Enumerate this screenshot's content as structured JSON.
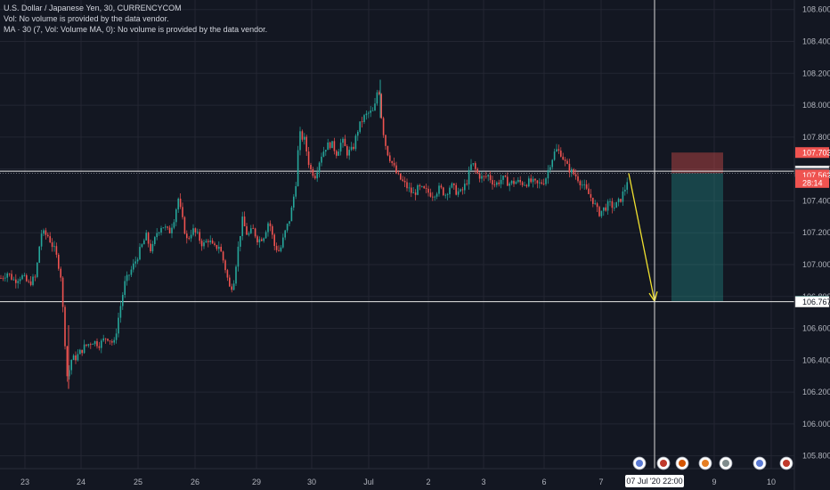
{
  "legend": {
    "title": "U.S. Dollar / Japanese Yen, 30, CURRENCYCOM",
    "vol": "Vol: No volume is provided by the data vendor.",
    "ma": "MA · 30 (7, Vol: Volume MA, 0): No volume is provided by the data vendor."
  },
  "colors": {
    "background": "#131722",
    "grid": "#232632",
    "up": "#26a69a",
    "down": "#ef5350",
    "crosshair": "#d1d4dc",
    "arrow": "#f0e130",
    "stop_zone": "#ef5350",
    "target_zone": "#26a69a"
  },
  "chart_data": {
    "type": "candlestick",
    "symbol": "U.S. Dollar / Japanese Yen, 30, CURRENCYCOM",
    "y_range": [
      105.72,
      108.66
    ],
    "y_ticks": [
      "108.600",
      "108.400",
      "108.200",
      "108.000",
      "107.800",
      "107.600",
      "107.400",
      "107.200",
      "107.000",
      "106.800",
      "106.600",
      "106.400",
      "106.200",
      "106.000",
      "105.800"
    ],
    "x_labels": [
      "23",
      "24",
      "25",
      "26",
      "29",
      "30",
      "Jul",
      "2",
      "3",
      "6",
      "7",
      "9",
      "10"
    ],
    "price_path": [
      [
        0,
        106.91
      ],
      [
        8,
        106.95
      ],
      [
        16,
        106.9
      ],
      [
        24,
        106.93
      ],
      [
        32,
        106.88
      ],
      [
        40,
        106.92
      ],
      [
        46,
        107.2
      ],
      [
        54,
        107.18
      ],
      [
        62,
        107.08
      ],
      [
        68,
        106.95
      ],
      [
        72,
        106.6
      ],
      [
        76,
        106.25
      ],
      [
        79,
        106.4
      ],
      [
        86,
        106.42
      ],
      [
        94,
        106.48
      ],
      [
        104,
        106.52
      ],
      [
        112,
        106.5
      ],
      [
        120,
        106.55
      ],
      [
        128,
        106.5
      ],
      [
        134,
        106.7
      ],
      [
        140,
        106.88
      ],
      [
        146,
        106.95
      ],
      [
        152,
        107.02
      ],
      [
        158,
        107.1
      ],
      [
        164,
        107.18
      ],
      [
        170,
        107.08
      ],
      [
        176,
        107.2
      ],
      [
        182,
        107.25
      ],
      [
        190,
        107.2
      ],
      [
        196,
        107.3
      ],
      [
        200,
        107.42
      ],
      [
        204,
        107.3
      ],
      [
        210,
        107.15
      ],
      [
        216,
        107.22
      ],
      [
        222,
        107.18
      ],
      [
        228,
        107.12
      ],
      [
        234,
        107.16
      ],
      [
        240,
        107.1
      ],
      [
        246,
        107.12
      ],
      [
        252,
        107.0
      ],
      [
        258,
        106.85
      ],
      [
        262,
        106.88
      ],
      [
        266,
        107.05
      ],
      [
        272,
        107.28
      ],
      [
        278,
        107.18
      ],
      [
        284,
        107.22
      ],
      [
        290,
        107.15
      ],
      [
        296,
        107.18
      ],
      [
        302,
        107.28
      ],
      [
        308,
        107.12
      ],
      [
        314,
        107.08
      ],
      [
        320,
        107.2
      ],
      [
        326,
        107.3
      ],
      [
        332,
        107.5
      ],
      [
        336,
        107.82
      ],
      [
        342,
        107.78
      ],
      [
        348,
        107.6
      ],
      [
        354,
        107.56
      ],
      [
        360,
        107.68
      ],
      [
        366,
        107.74
      ],
      [
        372,
        107.76
      ],
      [
        378,
        107.7
      ],
      [
        384,
        107.78
      ],
      [
        390,
        107.7
      ],
      [
        396,
        107.72
      ],
      [
        402,
        107.85
      ],
      [
        408,
        107.92
      ],
      [
        414,
        107.95
      ],
      [
        420,
        107.96
      ],
      [
        425,
        108.14
      ],
      [
        429,
        107.88
      ],
      [
        434,
        107.72
      ],
      [
        440,
        107.64
      ],
      [
        446,
        107.56
      ],
      [
        452,
        107.52
      ],
      [
        458,
        107.48
      ],
      [
        464,
        107.44
      ],
      [
        470,
        107.48
      ],
      [
        478,
        107.46
      ],
      [
        486,
        107.44
      ],
      [
        494,
        107.48
      ],
      [
        500,
        107.44
      ],
      [
        506,
        107.5
      ],
      [
        512,
        107.46
      ],
      [
        518,
        107.45
      ],
      [
        524,
        107.52
      ],
      [
        530,
        107.64
      ],
      [
        536,
        107.57
      ],
      [
        542,
        107.54
      ],
      [
        548,
        107.56
      ],
      [
        556,
        107.5
      ],
      [
        564,
        107.54
      ],
      [
        572,
        107.51
      ],
      [
        580,
        107.52
      ],
      [
        588,
        107.51
      ],
      [
        596,
        107.52
      ],
      [
        604,
        107.5
      ],
      [
        612,
        107.53
      ],
      [
        618,
        107.64
      ],
      [
        624,
        107.72
      ],
      [
        630,
        107.7
      ],
      [
        636,
        107.62
      ],
      [
        642,
        107.58
      ],
      [
        648,
        107.55
      ],
      [
        654,
        107.5
      ],
      [
        660,
        107.45
      ],
      [
        666,
        107.4
      ],
      [
        672,
        107.32
      ],
      [
        678,
        107.35
      ],
      [
        684,
        107.38
      ],
      [
        690,
        107.36
      ],
      [
        696,
        107.4
      ],
      [
        702,
        107.48
      ],
      [
        706,
        107.57
      ]
    ],
    "projection": {
      "from": 107.573,
      "to": 106.77
    },
    "crosshair_price": 107.586,
    "target_line_price": 106.767,
    "position": {
      "stop": 107.703,
      "entry": 107.573,
      "target": 106.77
    },
    "price_labels": [
      {
        "text": "108.600",
        "price": 108.6
      },
      {
        "text": "107.703",
        "price": 107.703,
        "role": "stop"
      },
      {
        "text": "107.586",
        "price": 107.586,
        "role": "crosshair"
      },
      {
        "text": "107.573",
        "price": 107.573,
        "role": "entry"
      },
      {
        "text": "107.562",
        "price": 107.562,
        "role": "last"
      },
      {
        "text": "28:14",
        "price": 107.515,
        "role": "countdown"
      },
      {
        "text": "106.770",
        "price": 106.77,
        "role": "target"
      },
      {
        "text": "106.767",
        "price": 106.767,
        "role": "crosshair"
      }
    ],
    "time_tag": "07 Jul '20   22:00"
  }
}
